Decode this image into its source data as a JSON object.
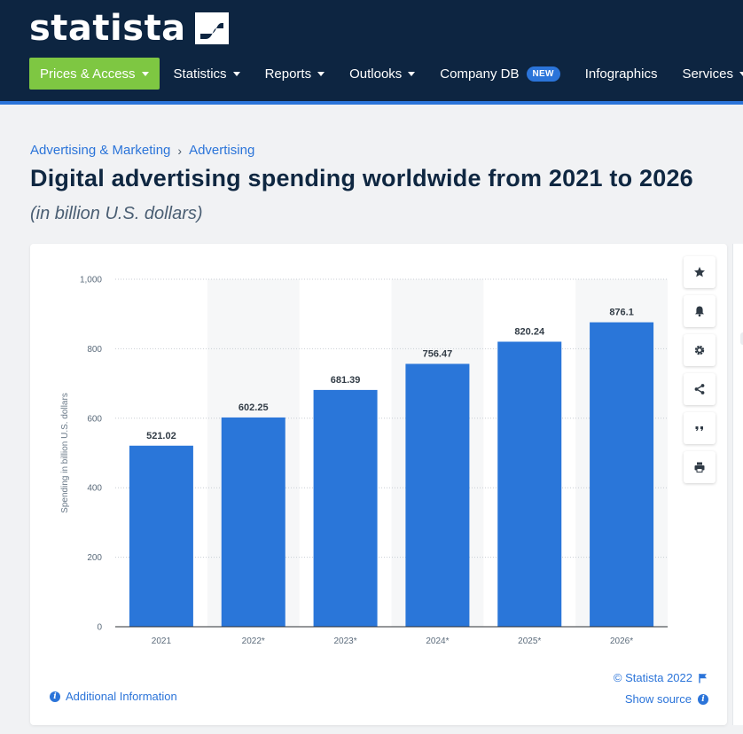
{
  "header": {
    "logo_text": "statista",
    "nav": [
      {
        "label": "Prices & Access",
        "caret": true
      },
      {
        "label": "Statistics",
        "caret": true
      },
      {
        "label": "Reports",
        "caret": true
      },
      {
        "label": "Outlooks",
        "caret": true
      },
      {
        "label": "Company DB",
        "caret": false,
        "badge": "NEW"
      },
      {
        "label": "Infographics",
        "caret": false
      },
      {
        "label": "Services",
        "caret": true
      }
    ]
  },
  "breadcrumb": [
    "Advertising & Marketing",
    "Advertising"
  ],
  "page": {
    "title": "Digital advertising spending worldwide from 2021 to 2026",
    "subtitle": "(in billion U.S. dollars)"
  },
  "chart_data": {
    "type": "bar",
    "categories": [
      "2021",
      "2022*",
      "2023*",
      "2024*",
      "2025*",
      "2026*"
    ],
    "values": [
      521.02,
      602.25,
      681.39,
      756.47,
      820.24,
      876.1
    ],
    "value_labels": [
      "521.02",
      "602.25",
      "681.39",
      "756.47",
      "820.24",
      "876.1"
    ],
    "ylabel": "Spending in billion U.S. dollars",
    "xlabel": "",
    "ylim": [
      0,
      1000
    ],
    "yticks": [
      0,
      200,
      400,
      600,
      800,
      1000
    ],
    "ytick_labels": [
      "0",
      "200",
      "400",
      "600",
      "800",
      "1,000"
    ],
    "grid": true,
    "bar_color": "#2a76d9",
    "alt_band_color": "#f6f7f8"
  },
  "tools": [
    {
      "name": "star-icon"
    },
    {
      "name": "bell-icon"
    },
    {
      "name": "gear-icon"
    },
    {
      "name": "share-icon"
    },
    {
      "name": "quote-icon"
    },
    {
      "name": "print-icon"
    }
  ],
  "footer": {
    "additional_info": "Additional Information",
    "copyright": "© Statista 2022",
    "show_source": "Show source"
  },
  "colors": {
    "header_bg": "#0d2541",
    "accent": "#2b74d9",
    "primary_button": "#7ec742"
  }
}
